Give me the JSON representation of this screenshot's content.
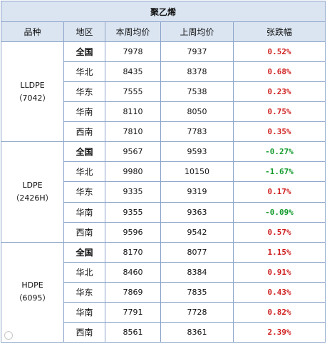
{
  "title": "聚乙烯",
  "headers": {
    "product": "品种",
    "region": "地区",
    "this_week": "本周均价",
    "last_week": "上周均价",
    "change": "张跌幅"
  },
  "groups": [
    {
      "product_line1": "LLDPE",
      "product_line2": "（7042）",
      "rows": [
        {
          "region": "全国",
          "this_week": "7978",
          "last_week": "7937",
          "change": "0.52%",
          "direction": "up",
          "bold_region": true
        },
        {
          "region": "华北",
          "this_week": "8435",
          "last_week": "8378",
          "change": "0.68%",
          "direction": "up",
          "bold_region": false
        },
        {
          "region": "华东",
          "this_week": "7555",
          "last_week": "7538",
          "change": "0.23%",
          "direction": "up",
          "bold_region": false
        },
        {
          "region": "华南",
          "this_week": "8110",
          "last_week": "8050",
          "change": "0.75%",
          "direction": "up",
          "bold_region": false
        },
        {
          "region": "西南",
          "this_week": "7810",
          "last_week": "7783",
          "change": "0.35%",
          "direction": "up",
          "bold_region": false
        }
      ]
    },
    {
      "product_line1": "LDPE",
      "product_line2": "（2426H）",
      "rows": [
        {
          "region": "全国",
          "this_week": "9567",
          "last_week": "9593",
          "change": "-0.27%",
          "direction": "down",
          "bold_region": true
        },
        {
          "region": "华北",
          "this_week": "9980",
          "last_week": "10150",
          "change": "-1.67%",
          "direction": "down",
          "bold_region": false
        },
        {
          "region": "华东",
          "this_week": "9335",
          "last_week": "9319",
          "change": "0.17%",
          "direction": "up",
          "bold_region": false
        },
        {
          "region": "华南",
          "this_week": "9355",
          "last_week": "9363",
          "change": "-0.09%",
          "direction": "down",
          "bold_region": false
        },
        {
          "region": "西南",
          "this_week": "9596",
          "last_week": "9542",
          "change": "0.57%",
          "direction": "up",
          "bold_region": false
        }
      ]
    },
    {
      "product_line1": "HDPE",
      "product_line2": "（6095）",
      "rows": [
        {
          "region": "全国",
          "this_week": "8170",
          "last_week": "8077",
          "change": "1.15%",
          "direction": "up",
          "bold_region": true
        },
        {
          "region": "华北",
          "this_week": "8460",
          "last_week": "8384",
          "change": "0.91%",
          "direction": "up",
          "bold_region": false
        },
        {
          "region": "华东",
          "this_week": "7869",
          "last_week": "7835",
          "change": "0.43%",
          "direction": "up",
          "bold_region": false
        },
        {
          "region": "华南",
          "this_week": "7791",
          "last_week": "7728",
          "change": "0.82%",
          "direction": "up",
          "bold_region": false
        },
        {
          "region": "西南",
          "this_week": "8561",
          "last_week": "8361",
          "change": "2.39%",
          "direction": "up",
          "bold_region": false
        }
      ]
    }
  ],
  "colors": {
    "up": "#d01f1f",
    "down": "#119a2b",
    "header_bg": "#dbe5f1",
    "border": "#8aa3c9"
  },
  "watermark_icon": "weibo-logo-icon"
}
